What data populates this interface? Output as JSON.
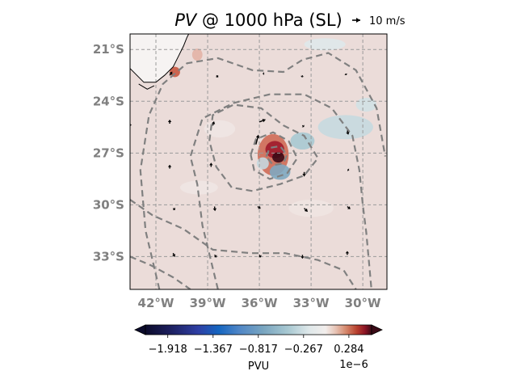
{
  "chart_data": {
    "type": "heatmap",
    "title": {
      "variable": "PV",
      "rest": " @ 1000 hPa (SL)"
    },
    "quiver_key_label": "10 m/s",
    "lat_ticks": [
      {
        "value": -21,
        "label": "21°S"
      },
      {
        "value": -24,
        "label": "24°S"
      },
      {
        "value": -27,
        "label": "27°S"
      },
      {
        "value": -30,
        "label": "30°S"
      },
      {
        "value": -33,
        "label": "33°S"
      }
    ],
    "lon_ticks": [
      {
        "value": -42,
        "label": "42°W"
      },
      {
        "value": -39,
        "label": "39°W"
      },
      {
        "value": -36,
        "label": "36°W"
      },
      {
        "value": -33,
        "label": "33°W"
      },
      {
        "value": -30,
        "label": "30°W"
      }
    ],
    "extent": {
      "lon": [
        -43.5,
        -28.6
      ],
      "lat": [
        -34.9,
        -20.1
      ]
    },
    "grid": true,
    "field_background_color": "#ebdcd9",
    "colorbar": {
      "label": "PVU",
      "offset_label": "1e−6",
      "range": [
        -2.19,
        0.56
      ],
      "extend": "both",
      "ticks": [
        {
          "value": -1.918,
          "label": "−1.918"
        },
        {
          "value": -1.367,
          "label": "−1.367"
        },
        {
          "value": -0.817,
          "label": "−0.817"
        },
        {
          "value": -0.267,
          "label": "−0.267"
        },
        {
          "value": 0.284,
          "label": "0.284"
        }
      ],
      "colormap_stops": [
        {
          "value": -2.19,
          "color": "#0c0c2c"
        },
        {
          "value": -1.9,
          "color": "#1c1e5c"
        },
        {
          "value": -1.55,
          "color": "#2e3fa4"
        },
        {
          "value": -1.3,
          "color": "#1565c0"
        },
        {
          "value": -1.05,
          "color": "#4f86c6"
        },
        {
          "value": -0.75,
          "color": "#7aa6c0"
        },
        {
          "value": -0.45,
          "color": "#a9c9d2"
        },
        {
          "value": -0.2,
          "color": "#dfe8ea"
        },
        {
          "value": 0.0,
          "color": "#f2eeec"
        },
        {
          "value": 0.12,
          "color": "#e7c4b6"
        },
        {
          "value": 0.25,
          "color": "#d4876b"
        },
        {
          "value": 0.38,
          "color": "#b8402e"
        },
        {
          "value": 0.48,
          "color": "#8c1425"
        },
        {
          "value": 0.56,
          "color": "#3b0a16"
        }
      ]
    },
    "anomalies": [
      {
        "lon": -35.2,
        "lat": -27.1,
        "rx": 0.9,
        "ry": 1.2,
        "color": "#cf6a55"
      },
      {
        "lon": -35.1,
        "lat": -26.8,
        "rx": 0.55,
        "ry": 0.5,
        "color": "#9e1b2b"
      },
      {
        "lon": -34.9,
        "lat": -27.25,
        "rx": 0.35,
        "ry": 0.3,
        "color": "#3b0a16"
      },
      {
        "lon": -34.8,
        "lat": -28.1,
        "rx": 0.6,
        "ry": 0.45,
        "color": "#7fa9c0"
      },
      {
        "lon": -35.8,
        "lat": -27.6,
        "rx": 0.35,
        "ry": 0.35,
        "color": "#c5d8de"
      },
      {
        "lon": -41.5,
        "lat": -21.5,
        "rx": 0.45,
        "ry": 0.6,
        "color": "#d9846c"
      },
      {
        "lon": -40.9,
        "lat": -22.3,
        "rx": 0.3,
        "ry": 0.3,
        "color": "#c9563f"
      },
      {
        "lon": -39.6,
        "lat": -21.3,
        "rx": 0.3,
        "ry": 0.35,
        "color": "#e3b3a5"
      },
      {
        "lon": -31.0,
        "lat": -25.5,
        "rx": 1.6,
        "ry": 0.7,
        "color": "#c7d9df"
      },
      {
        "lon": -33.5,
        "lat": -26.3,
        "rx": 0.7,
        "ry": 0.5,
        "color": "#a9c9d2"
      },
      {
        "lon": -29.8,
        "lat": -24.2,
        "rx": 0.6,
        "ry": 0.4,
        "color": "#d2e1e4"
      },
      {
        "lon": -32.2,
        "lat": -20.7,
        "rx": 1.2,
        "ry": 0.35,
        "color": "#dfe8ea"
      },
      {
        "lon": -38.3,
        "lat": -25.6,
        "rx": 0.9,
        "ry": 0.5,
        "color": "#f0e6e3"
      },
      {
        "lon": -39.5,
        "lat": -29.0,
        "rx": 1.1,
        "ry": 0.4,
        "color": "#f0e6e3"
      },
      {
        "lon": -33.0,
        "lat": -30.2,
        "rx": 1.3,
        "ry": 0.5,
        "color": "#efe4e1"
      }
    ],
    "contours": [
      [
        [
          -41.8,
          -34.9
        ],
        [
          -42.6,
          -31.5
        ],
        [
          -42.9,
          -28.0
        ],
        [
          -42.4,
          -24.8
        ],
        [
          -41.6,
          -23.0
        ],
        [
          -40.2,
          -21.8
        ],
        [
          -38.4,
          -21.5
        ],
        [
          -36.4,
          -22.2
        ],
        [
          -34.6,
          -22.3
        ],
        [
          -33.5,
          -21.6
        ],
        [
          -32.0,
          -21.2
        ],
        [
          -30.4,
          -22.2
        ],
        [
          -29.2,
          -24.4
        ],
        [
          -28.7,
          -27.2
        ]
      ],
      [
        [
          -38.4,
          -34.9
        ],
        [
          -39.3,
          -31.2
        ],
        [
          -39.6,
          -28.8
        ],
        [
          -40.0,
          -27.2
        ],
        [
          -39.3,
          -25.0
        ],
        [
          -37.5,
          -24.1
        ],
        [
          -35.4,
          -23.6
        ],
        [
          -33.4,
          -23.6
        ],
        [
          -31.8,
          -24.4
        ],
        [
          -30.6,
          -26.0
        ],
        [
          -30.2,
          -28.0
        ],
        [
          -30.0,
          -30.0
        ],
        [
          -29.8,
          -31.6
        ],
        [
          -29.6,
          -33.8
        ],
        [
          -29.5,
          -34.9
        ]
      ],
      [
        [
          -38.9,
          -26.3
        ],
        [
          -38.7,
          -24.8
        ],
        [
          -37.5,
          -24.2
        ],
        [
          -35.9,
          -24.4
        ],
        [
          -34.6,
          -25.4
        ],
        [
          -33.4,
          -26.0
        ],
        [
          -32.6,
          -27.3
        ],
        [
          -33.4,
          -28.3
        ],
        [
          -34.8,
          -28.8
        ],
        [
          -36.4,
          -29.2
        ],
        [
          -37.6,
          -29.0
        ],
        [
          -38.5,
          -27.8
        ],
        [
          -38.9,
          -26.3
        ]
      ],
      [
        [
          -36.5,
          -27.1
        ],
        [
          -36.2,
          -26.2
        ],
        [
          -35.2,
          -25.8
        ],
        [
          -34.3,
          -26.3
        ],
        [
          -33.8,
          -27.3
        ],
        [
          -34.4,
          -28.2
        ],
        [
          -35.4,
          -28.5
        ],
        [
          -36.3,
          -28.0
        ],
        [
          -36.5,
          -27.1
        ]
      ],
      [
        [
          -35.6,
          -27.2
        ],
        [
          -35.4,
          -26.7
        ],
        [
          -34.8,
          -26.6
        ],
        [
          -34.4,
          -27.1
        ],
        [
          -34.6,
          -27.6
        ],
        [
          -35.2,
          -27.7
        ],
        [
          -35.6,
          -27.2
        ]
      ],
      [
        [
          -43.5,
          -33.0
        ],
        [
          -42.3,
          -33.5
        ],
        [
          -41.0,
          -34.2
        ],
        [
          -40.0,
          -34.9
        ]
      ],
      [
        [
          -43.5,
          -29.7
        ],
        [
          -42.2,
          -30.6
        ],
        [
          -40.4,
          -31.4
        ],
        [
          -38.7,
          -32.6
        ],
        [
          -36.5,
          -32.8
        ],
        [
          -34.5,
          -32.8
        ],
        [
          -32.6,
          -33.2
        ],
        [
          -31.1,
          -33.8
        ],
        [
          -30.4,
          -34.9
        ]
      ]
    ],
    "coastline": [
      [
        [
          -43.5,
          -22.1
        ],
        [
          -42.7,
          -22.9
        ],
        [
          -42.0,
          -22.9
        ],
        [
          -41.5,
          -22.5
        ],
        [
          -41.0,
          -22.0
        ],
        [
          -40.7,
          -21.4
        ],
        [
          -40.4,
          -20.8
        ],
        [
          -40.2,
          -20.3
        ],
        [
          -40.1,
          -20.1
        ]
      ],
      [
        [
          -43.0,
          -23.0
        ],
        [
          -42.5,
          -23.3
        ],
        [
          -42.1,
          -23.1
        ]
      ]
    ],
    "wind_vectors": [
      {
        "lon": -41.2,
        "lat": -22.5,
        "u": 1.0,
        "v": 1.5
      },
      {
        "lon": -38.5,
        "lat": -22.6,
        "u": 0.8,
        "v": 0.6
      },
      {
        "lon": -35.8,
        "lat": -22.4,
        "u": 0.6,
        "v": 0.0
      },
      {
        "lon": -33.5,
        "lat": -22.5,
        "u": -0.2,
        "v": -0.8
      },
      {
        "lon": -31.0,
        "lat": -22.4,
        "u": 0.3,
        "v": -0.6
      },
      {
        "lon": -43.5,
        "lat": -25.3,
        "u": 0.0,
        "v": -1.0
      },
      {
        "lon": -41.2,
        "lat": -25.3,
        "u": 0.0,
        "v": 1.6
      },
      {
        "lon": -38.7,
        "lat": -25.4,
        "u": 0.5,
        "v": 1.6
      },
      {
        "lon": -36.0,
        "lat": -25.2,
        "u": 2.5,
        "v": 1.0
      },
      {
        "lon": -33.5,
        "lat": -25.4,
        "u": 0.6,
        "v": -0.6
      },
      {
        "lon": -30.9,
        "lat": -25.7,
        "u": 0.4,
        "v": -1.6
      },
      {
        "lon": -41.2,
        "lat": -27.9,
        "u": 0.0,
        "v": 1.5
      },
      {
        "lon": -38.8,
        "lat": -27.8,
        "u": 0.0,
        "v": 1.6
      },
      {
        "lon": -36.2,
        "lat": -26.5,
        "u": 1.0,
        "v": 3.8
      },
      {
        "lon": -33.4,
        "lat": -28.1,
        "u": 0.0,
        "v": -1.8
      },
      {
        "lon": -30.8,
        "lat": -28.0,
        "u": -0.6,
        "v": 0.3
      },
      {
        "lon": -41.0,
        "lat": -30.2,
        "u": 0.8,
        "v": -0.6
      },
      {
        "lon": -38.6,
        "lat": -30.1,
        "u": 0.2,
        "v": -1.8
      },
      {
        "lon": -36.1,
        "lat": -30.1,
        "u": 1.2,
        "v": -0.8
      },
      {
        "lon": -33.4,
        "lat": -30.2,
        "u": 1.4,
        "v": -1.4
      },
      {
        "lon": -30.9,
        "lat": -30.1,
        "u": 1.2,
        "v": -1.0
      },
      {
        "lon": -41.0,
        "lat": -32.8,
        "u": 0.6,
        "v": -1.5
      },
      {
        "lon": -38.6,
        "lat": -32.9,
        "u": 0.8,
        "v": -1.0
      },
      {
        "lon": -36.0,
        "lat": -32.9,
        "u": 0.6,
        "v": -1.0
      },
      {
        "lon": -33.5,
        "lat": -32.9,
        "u": 0.0,
        "v": -1.5
      },
      {
        "lon": -30.9,
        "lat": -32.9,
        "u": 0.0,
        "v": 1.5
      }
    ]
  }
}
